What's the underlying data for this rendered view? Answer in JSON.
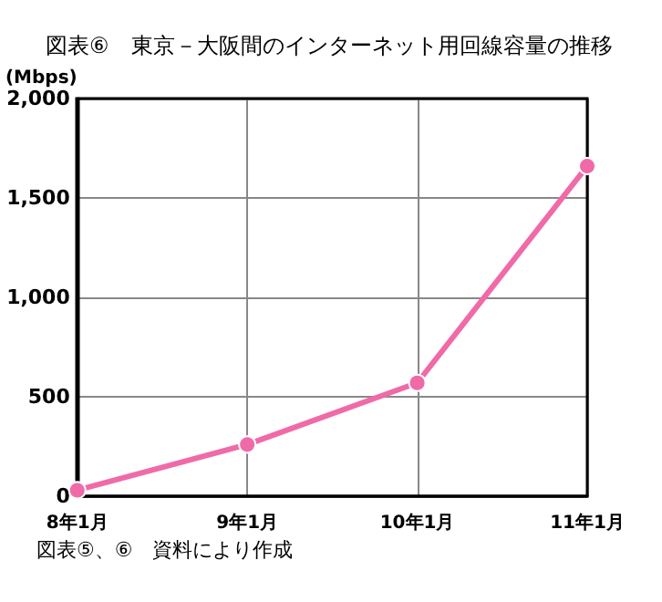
{
  "chart_data": {
    "type": "line",
    "title": "図表⑥　東京－大阪間のインターネット用回線容量の推移",
    "ylabel": "(Mbps)",
    "categories": [
      "8年1月",
      "9年1月",
      "10年1月",
      "11年1月"
    ],
    "series": [
      {
        "color": "#f06aa8",
        "values": [
          30,
          260,
          570,
          1660
        ]
      }
    ],
    "ylim": [
      0,
      2000
    ],
    "yticks": [
      0,
      500,
      {
        "value": 1000,
        "label": "1,000"
      },
      {
        "value": 1500,
        "label": "1,500"
      },
      {
        "value": 2000,
        "label": "2,000"
      }
    ],
    "grid": true,
    "marker": "circle",
    "line_style": "solid",
    "annotations": [
      "図表⑤、⑥　資料により作成"
    ]
  }
}
